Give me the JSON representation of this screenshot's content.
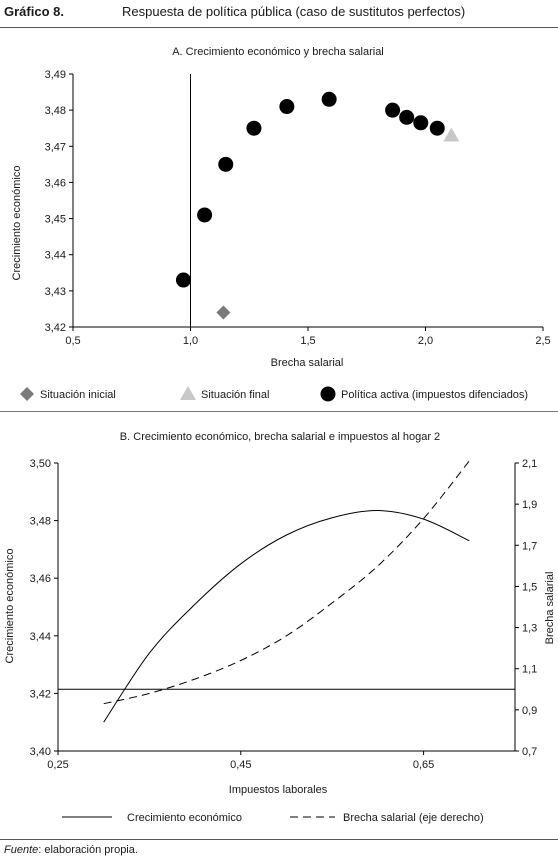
{
  "header": {
    "figure_label": "Gráfico 8.",
    "figure_title": "Respuesta de política pública (caso de sustitutos perfectos)"
  },
  "source": {
    "label": "Fuente",
    "text": ": elaboración propia."
  },
  "chart_data": [
    {
      "type": "scatter",
      "title": "A. Crecimiento económico y brecha salarial",
      "xlabel": "Brecha salarial",
      "ylabel": "Crecimiento económico",
      "xlim": [
        0.5,
        2.5
      ],
      "ylim": [
        3.42,
        3.49
      ],
      "x_ticks": [
        "0,5",
        "1,0",
        "1,5",
        "2,0",
        "2,5"
      ],
      "x_tick_values": [
        0.5,
        1.0,
        1.5,
        2.0,
        2.5
      ],
      "y_ticks": [
        "3,42",
        "3,43",
        "3,44",
        "3,45",
        "3,46",
        "3,47",
        "3,48",
        "3,49"
      ],
      "y_tick_values": [
        3.42,
        3.43,
        3.44,
        3.45,
        3.46,
        3.47,
        3.48,
        3.49
      ],
      "reference_line_x": 1.0,
      "grid": false,
      "legend_position": "bottom",
      "series": [
        {
          "name": "Situación inicial",
          "marker": "diamond",
          "color": "#7a7a7a",
          "points": [
            {
              "x": 1.14,
              "y": 3.424
            }
          ]
        },
        {
          "name": "Situación final",
          "marker": "triangle",
          "color": "#c8c8c8",
          "points": [
            {
              "x": 2.11,
              "y": 3.473
            }
          ]
        },
        {
          "name": "Política activa (impuestos difenciados)",
          "marker": "circle",
          "color": "#000000",
          "points": [
            {
              "x": 0.97,
              "y": 3.433
            },
            {
              "x": 1.06,
              "y": 3.451
            },
            {
              "x": 1.15,
              "y": 3.465
            },
            {
              "x": 1.27,
              "y": 3.475
            },
            {
              "x": 1.41,
              "y": 3.481
            },
            {
              "x": 1.59,
              "y": 3.483
            },
            {
              "x": 1.86,
              "y": 3.48
            },
            {
              "x": 1.92,
              "y": 3.478
            },
            {
              "x": 1.98,
              "y": 3.4765
            },
            {
              "x": 2.05,
              "y": 3.475
            }
          ]
        }
      ]
    },
    {
      "type": "line",
      "title": "B. Crecimiento económico, brecha salarial e impuestos al hogar 2",
      "xlabel": "Impuestos laborales",
      "ylabel": "Crecimiento económico",
      "ylabel_right": "Brecha salarial",
      "xlim": [
        0.25,
        0.75
      ],
      "ylim": [
        3.4,
        3.5
      ],
      "ylim_right": [
        0.7,
        2.1
      ],
      "x_ticks": [
        "0,25",
        "0,45",
        "0,65"
      ],
      "x_tick_values": [
        0.25,
        0.45,
        0.65
      ],
      "y_ticks": [
        "3,40",
        "3,42",
        "3,44",
        "3,46",
        "3,48",
        "3,50"
      ],
      "y_tick_values": [
        3.4,
        3.42,
        3.44,
        3.46,
        3.48,
        3.5
      ],
      "y_ticks_right": [
        "0,7",
        "0,9",
        "1,1",
        "1,3",
        "1,5",
        "1,7",
        "1,9",
        "2,1"
      ],
      "y_tick_values_right": [
        0.7,
        0.9,
        1.1,
        1.3,
        1.5,
        1.7,
        1.9,
        2.1
      ],
      "reference_line_y_right": 1.0,
      "grid": false,
      "legend_position": "bottom",
      "series": [
        {
          "name": "Crecimiento económico",
          "axis": "left",
          "style": "solid",
          "x": [
            0.3,
            0.35,
            0.4,
            0.45,
            0.5,
            0.55,
            0.6,
            0.65,
            0.7
          ],
          "values": [
            3.41,
            3.434,
            3.451,
            3.465,
            3.475,
            3.481,
            3.4835,
            3.4805,
            3.473
          ]
        },
        {
          "name": "Brecha salarial (eje derecho)",
          "axis": "right",
          "style": "dashed",
          "x": [
            0.3,
            0.35,
            0.4,
            0.45,
            0.5,
            0.55,
            0.6,
            0.65,
            0.7
          ],
          "values": [
            0.93,
            0.98,
            1.05,
            1.14,
            1.26,
            1.42,
            1.6,
            1.83,
            2.11
          ]
        }
      ]
    }
  ]
}
